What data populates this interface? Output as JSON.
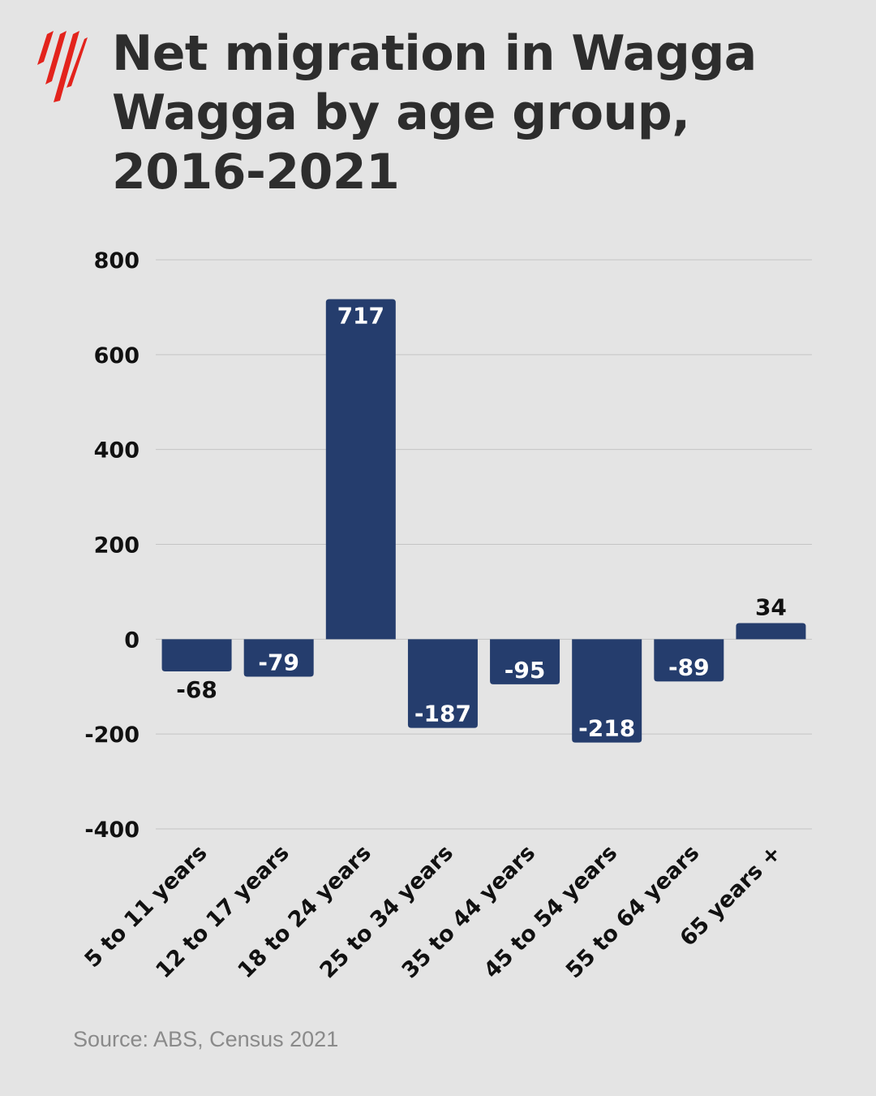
{
  "title": "Net migration in Wagga Wagga by age group, 2016-2021",
  "source": "Source: ABS, Census 2021",
  "logo": {
    "icon": "sbs-logo-icon",
    "color": "#e3231c"
  },
  "colors": {
    "bar": "#253d6d",
    "grid": "#c4c4c4",
    "label_inside": "#ffffff",
    "label_outside": "#111111"
  },
  "chart_data": {
    "type": "bar",
    "title": "Net migration in Wagga Wagga by age group, 2016-2021",
    "xlabel": "",
    "ylabel": "",
    "categories": [
      "5 to 11 years",
      "12 to 17 years",
      "18 to 24 years",
      "25 to 34 years",
      "35 to 44 years",
      "45 to 54 years",
      "55 to 64 years",
      "65 years +"
    ],
    "values": [
      -68,
      -79,
      717,
      -187,
      -95,
      -218,
      -89,
      34
    ],
    "ylim": [
      -400,
      800
    ],
    "yticks": [
      800,
      600,
      400,
      200,
      0,
      -200,
      -400
    ],
    "grid": true,
    "legend": "none"
  }
}
